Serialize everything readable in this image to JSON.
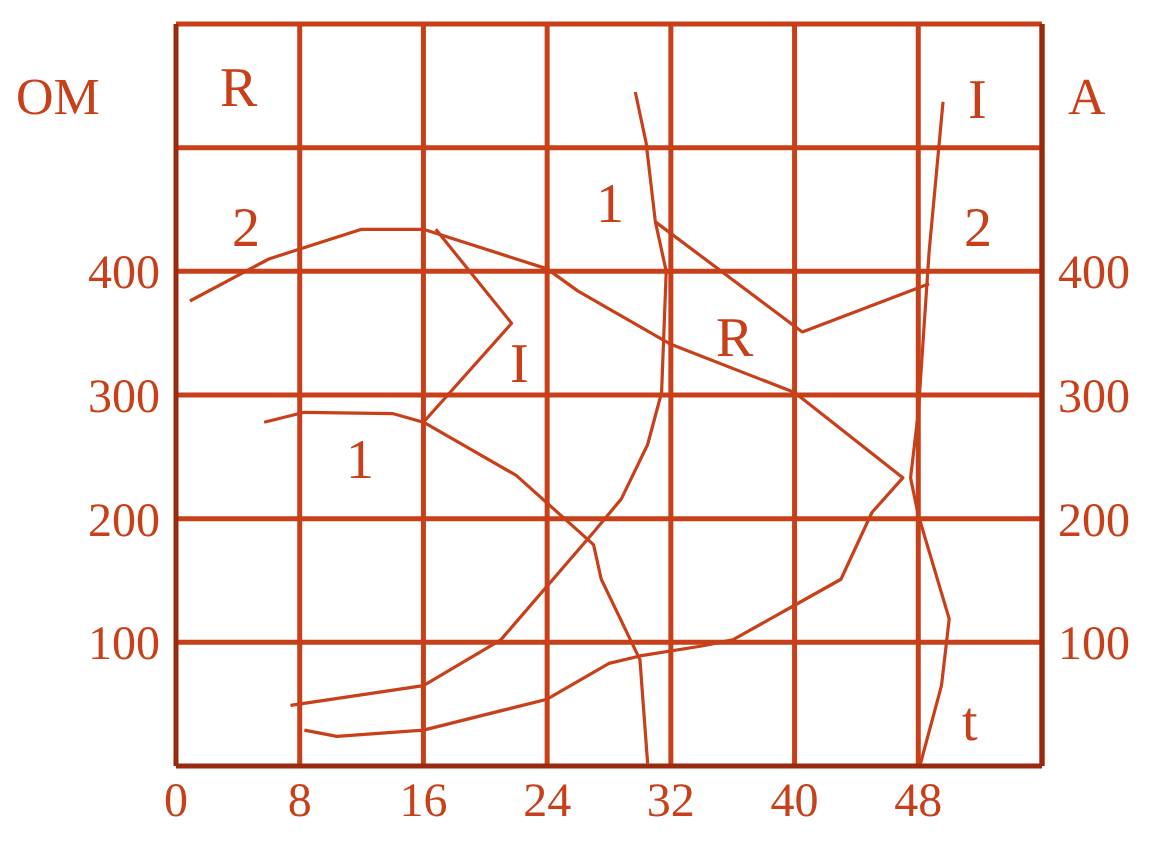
{
  "chart_data": {
    "type": "line",
    "ylabel": "OM",
    "y2label": "A",
    "xlabel": "t",
    "xlim": [
      0,
      56
    ],
    "xticks": [
      0,
      8,
      16,
      24,
      32,
      40,
      48,
      {
        "value": 56,
        "label": null
      }
    ],
    "ylim": [
      0,
      600
    ],
    "yticks": [
      {
        "value": 0,
        "label": null
      },
      100,
      200,
      300,
      400,
      {
        "value": 500,
        "label": null
      },
      {
        "value": 600,
        "label": null
      }
    ],
    "y2lim": [
      0,
      600
    ],
    "y2ticks": [
      100,
      200,
      300,
      400
    ],
    "grid": true,
    "series": [
      {
        "color": "#c8401a",
        "x": [
          0.9,
          6,
          12,
          16,
          24,
          26,
          32,
          40,
          47,
          45,
          43,
          40,
          36,
          34,
          30,
          28,
          24,
          16,
          10.4,
          8.3
        ],
        "values": [
          376,
          410,
          434,
          434,
          402,
          384,
          341,
          302,
          233,
          205,
          151,
          130,
          102,
          97,
          89,
          83,
          54,
          29,
          24,
          29
        ]
      },
      {
        "color": "#c8401a",
        "x": [
          5.7,
          8.3,
          14,
          16,
          22,
          27,
          27.5,
          30,
          30.5
        ],
        "values": [
          278,
          286,
          285,
          278,
          235,
          179,
          151,
          86,
          2
        ]
      },
      {
        "color": "#c8401a",
        "x": [
          7.4,
          16,
          21,
          27,
          28.8,
          30.5,
          31.4,
          31.7,
          31,
          30.4,
          29.7
        ],
        "values": [
          49,
          65,
          102,
          189,
          216,
          260,
          302,
          400,
          440,
          504,
          545
        ]
      },
      {
        "color": "#c8401a",
        "x": [
          16,
          21.7,
          16.8
        ],
        "values": [
          278,
          358,
          434
        ]
      },
      {
        "color": "#c8401a",
        "x": [
          31,
          40.5,
          48.7
        ],
        "values": [
          440,
          351,
          390
        ]
      },
      {
        "color": "#c8401a",
        "x": [
          49.6,
          48.7,
          48,
          47.5,
          48,
          50,
          49.5,
          48.1
        ],
        "values": [
          537,
          416,
          286,
          233,
          203,
          119,
          65,
          0
        ]
      }
    ],
    "annotations": [
      "R",
      "2",
      "1",
      "I",
      "1",
      "R",
      "I",
      "2"
    ]
  }
}
